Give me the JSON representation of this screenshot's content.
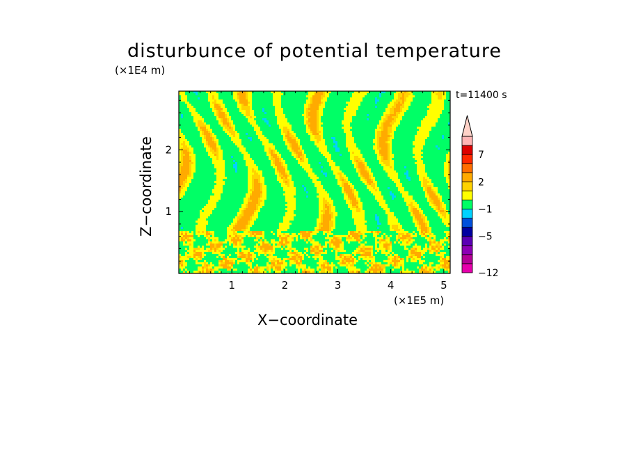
{
  "chart_data": {
    "type": "heatmap",
    "title": "disturbunce of potential temperature",
    "xlabel": "X−coordinate",
    "ylabel": "Z−coordinate",
    "x_multiplier": "(×1E5 m)",
    "y_multiplier": "(×1E4 m)",
    "time_label": "t=11400 s",
    "xlim": [
      0,
      5.12
    ],
    "ylim": [
      0,
      2.95
    ],
    "x_ticks": [
      "1",
      "2",
      "3",
      "4",
      "5"
    ],
    "x_tick_values": [
      1,
      2,
      3,
      4,
      5
    ],
    "y_ticks": [
      "1",
      "2"
    ],
    "y_tick_values": [
      1,
      2
    ],
    "colorbar": {
      "bins": [
        "#e600ac",
        "#b40096",
        "#8c00b4",
        "#5a00b4",
        "#0000a0",
        "#0050dc",
        "#00d2ff",
        "#00ff66",
        "#ffff00",
        "#ffd200",
        "#ffaa00",
        "#ff6e00",
        "#ff2800",
        "#dc0000",
        "#ffb4b4"
      ],
      "arrow_color": "#ffd2c8",
      "labels": [
        "−12",
        "−5",
        "−1",
        "2",
        "7"
      ],
      "label_bins": [
        0,
        4,
        7,
        10,
        13
      ]
    },
    "field_colors": {
      "background": "#00ff66",
      "positive": "#ffff00",
      "strong_positive": "#ffd200",
      "peak": "#ffaa00",
      "negative": "#00d2ff"
    }
  }
}
